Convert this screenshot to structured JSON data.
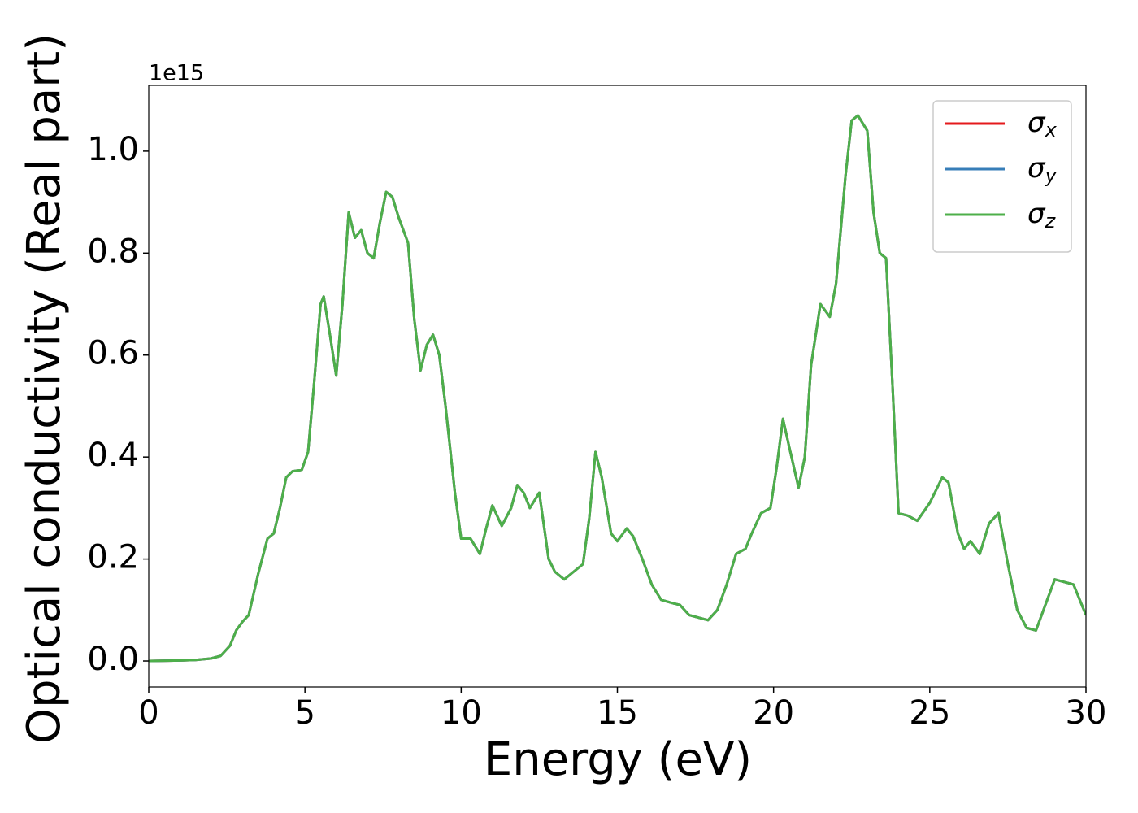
{
  "chart_data": {
    "type": "line",
    "xlabel": "Energy (eV)",
    "ylabel": "Optical conductivity (Real part)",
    "y_offset_label": "1e15",
    "xlim": [
      0,
      30
    ],
    "xticks": [
      0,
      5,
      10,
      15,
      20,
      25,
      30
    ],
    "ylim": [
      -0.051,
      1.129
    ],
    "yticks": [
      {
        "value": 0,
        "label": "0.0"
      },
      0.2,
      0.4,
      0.6,
      0.8,
      {
        "value": 1,
        "label": "1.0"
      }
    ],
    "legend": "upper right",
    "x": [
      0,
      1,
      1.5,
      2,
      2.3,
      2.6,
      2.8,
      3.0,
      3.2,
      3.5,
      3.8,
      4.0,
      4.2,
      4.4,
      4.6,
      4.9,
      5.1,
      5.3,
      5.5,
      5.6,
      5.8,
      6.0,
      6.2,
      6.4,
      6.6,
      6.8,
      7.0,
      7.2,
      7.4,
      7.6,
      7.8,
      8.0,
      8.3,
      8.5,
      8.7,
      8.9,
      9.1,
      9.3,
      9.5,
      9.8,
      10.0,
      10.3,
      10.6,
      10.8,
      11.0,
      11.3,
      11.6,
      11.8,
      12.0,
      12.2,
      12.5,
      12.8,
      13.0,
      13.3,
      13.6,
      13.9,
      14.1,
      14.3,
      14.5,
      14.8,
      15.0,
      15.3,
      15.5,
      15.8,
      16.1,
      16.4,
      16.8,
      17.0,
      17.3,
      17.6,
      17.9,
      18.2,
      18.5,
      18.8,
      19.1,
      19.3,
      19.6,
      19.9,
      20.1,
      20.3,
      20.5,
      20.8,
      21.0,
      21.2,
      21.5,
      21.8,
      22.0,
      22.3,
      22.5,
      22.7,
      23.0,
      23.2,
      23.4,
      23.6,
      23.8,
      24.0,
      24.3,
      24.6,
      25.0,
      25.4,
      25.6,
      25.9,
      26.1,
      26.3,
      26.6,
      26.9,
      27.2,
      27.5,
      27.8,
      28.1,
      28.4,
      28.7,
      29.0,
      29.3,
      29.6,
      30.0
    ],
    "series": [
      {
        "name": "σx",
        "color": "#e41a1c",
        "values": [
          0,
          0.001,
          0.002,
          0.005,
          0.01,
          0.03,
          0.06,
          0.077,
          0.09,
          0.17,
          0.24,
          0.25,
          0.3,
          0.36,
          0.372,
          0.375,
          0.41,
          0.55,
          0.7,
          0.715,
          0.64,
          0.56,
          0.7,
          0.88,
          0.83,
          0.845,
          0.8,
          0.79,
          0.86,
          0.92,
          0.91,
          0.87,
          0.82,
          0.67,
          0.57,
          0.62,
          0.64,
          0.6,
          0.5,
          0.33,
          0.24,
          0.24,
          0.21,
          0.26,
          0.305,
          0.265,
          0.3,
          0.345,
          0.33,
          0.3,
          0.33,
          0.2,
          0.175,
          0.16,
          0.175,
          0.19,
          0.28,
          0.41,
          0.36,
          0.25,
          0.235,
          0.26,
          0.245,
          0.2,
          0.15,
          0.12,
          0.113,
          0.11,
          0.09,
          0.085,
          0.08,
          0.1,
          0.15,
          0.21,
          0.22,
          0.25,
          0.29,
          0.3,
          0.38,
          0.475,
          0.42,
          0.34,
          0.4,
          0.58,
          0.7,
          0.675,
          0.74,
          0.95,
          1.06,
          1.07,
          1.04,
          0.88,
          0.8,
          0.79,
          0.55,
          0.29,
          0.285,
          0.275,
          0.31,
          0.36,
          0.35,
          0.25,
          0.22,
          0.235,
          0.21,
          0.27,
          0.29,
          0.19,
          0.1,
          0.065,
          0.06,
          0.11,
          0.16,
          0.155,
          0.15,
          0.09
        ]
      },
      {
        "name": "σy",
        "color": "#377eb8",
        "values": [
          0,
          0.001,
          0.002,
          0.005,
          0.01,
          0.03,
          0.06,
          0.077,
          0.09,
          0.17,
          0.24,
          0.25,
          0.3,
          0.36,
          0.372,
          0.375,
          0.41,
          0.55,
          0.7,
          0.715,
          0.64,
          0.56,
          0.7,
          0.88,
          0.83,
          0.845,
          0.8,
          0.79,
          0.86,
          0.92,
          0.91,
          0.87,
          0.82,
          0.67,
          0.57,
          0.62,
          0.64,
          0.6,
          0.5,
          0.33,
          0.24,
          0.24,
          0.21,
          0.26,
          0.305,
          0.265,
          0.3,
          0.345,
          0.33,
          0.3,
          0.33,
          0.2,
          0.175,
          0.16,
          0.175,
          0.19,
          0.28,
          0.41,
          0.36,
          0.25,
          0.235,
          0.26,
          0.245,
          0.2,
          0.15,
          0.12,
          0.113,
          0.11,
          0.09,
          0.085,
          0.08,
          0.1,
          0.15,
          0.21,
          0.22,
          0.25,
          0.29,
          0.3,
          0.38,
          0.475,
          0.42,
          0.34,
          0.4,
          0.58,
          0.7,
          0.675,
          0.74,
          0.95,
          1.06,
          1.07,
          1.04,
          0.88,
          0.8,
          0.79,
          0.55,
          0.29,
          0.285,
          0.275,
          0.31,
          0.36,
          0.35,
          0.25,
          0.22,
          0.235,
          0.21,
          0.27,
          0.29,
          0.19,
          0.1,
          0.065,
          0.06,
          0.11,
          0.16,
          0.155,
          0.15,
          0.09
        ]
      },
      {
        "name": "σz",
        "color": "#4daf4a",
        "values": [
          0,
          0.001,
          0.002,
          0.005,
          0.01,
          0.03,
          0.06,
          0.077,
          0.09,
          0.17,
          0.24,
          0.25,
          0.3,
          0.36,
          0.372,
          0.375,
          0.41,
          0.55,
          0.7,
          0.715,
          0.64,
          0.56,
          0.7,
          0.88,
          0.83,
          0.845,
          0.8,
          0.79,
          0.86,
          0.92,
          0.91,
          0.87,
          0.82,
          0.67,
          0.57,
          0.62,
          0.64,
          0.6,
          0.5,
          0.33,
          0.24,
          0.24,
          0.21,
          0.26,
          0.305,
          0.265,
          0.3,
          0.345,
          0.33,
          0.3,
          0.33,
          0.2,
          0.175,
          0.16,
          0.175,
          0.19,
          0.28,
          0.41,
          0.36,
          0.25,
          0.235,
          0.26,
          0.245,
          0.2,
          0.15,
          0.12,
          0.113,
          0.11,
          0.09,
          0.085,
          0.08,
          0.1,
          0.15,
          0.21,
          0.22,
          0.25,
          0.29,
          0.3,
          0.38,
          0.475,
          0.42,
          0.34,
          0.4,
          0.58,
          0.7,
          0.675,
          0.74,
          0.95,
          1.06,
          1.07,
          1.04,
          0.88,
          0.8,
          0.79,
          0.55,
          0.29,
          0.285,
          0.275,
          0.31,
          0.36,
          0.35,
          0.25,
          0.22,
          0.235,
          0.21,
          0.27,
          0.29,
          0.19,
          0.1,
          0.065,
          0.06,
          0.11,
          0.16,
          0.155,
          0.15,
          0.09
        ]
      }
    ]
  }
}
